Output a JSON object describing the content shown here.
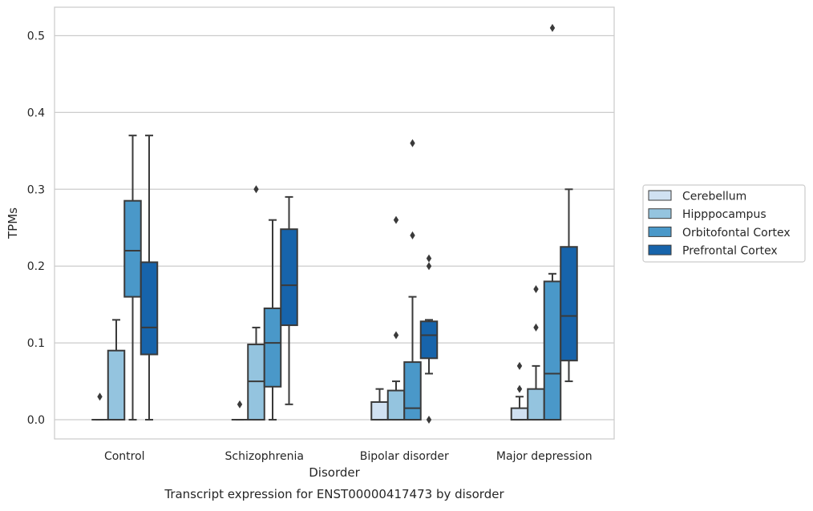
{
  "chart_data": {
    "type": "boxplot",
    "title": "Transcript expression for ENST00000417473 by disorder",
    "xlabel": "Disorder",
    "ylabel": "TPMs",
    "ylim": [
      -0.025,
      0.537
    ],
    "yticks": [
      0.0,
      0.1,
      0.2,
      0.3,
      0.4,
      0.5
    ],
    "ytick_labels": [
      "0.0",
      "0.1",
      "0.2",
      "0.3",
      "0.4",
      "0.5"
    ],
    "grid": true,
    "legend_position": "right",
    "categories": [
      "Control",
      "Schizophrenia",
      "Bipolar disorder",
      "Major depression"
    ],
    "series": [
      {
        "name": "Cerebellum",
        "color": "#d0e1f2",
        "boxes": [
          {
            "q1": 0.0,
            "median": 0.0,
            "q3": 0.0,
            "whisker_low": 0.0,
            "whisker_high": 0.0,
            "outliers": [
              0.03
            ]
          },
          {
            "q1": 0.0,
            "median": 0.0,
            "q3": 0.0,
            "whisker_low": 0.0,
            "whisker_high": 0.0,
            "outliers": [
              0.02
            ]
          },
          {
            "q1": 0.0,
            "median": 0.0,
            "q3": 0.023,
            "whisker_low": 0.0,
            "whisker_high": 0.04,
            "outliers": []
          },
          {
            "q1": 0.0,
            "median": 0.0,
            "q3": 0.015,
            "whisker_low": 0.0,
            "whisker_high": 0.03,
            "outliers": [
              0.04,
              0.07
            ]
          }
        ]
      },
      {
        "name": "Hipppocampus",
        "color": "#94c4df",
        "boxes": [
          {
            "q1": 0.0,
            "median": 0.0,
            "q3": 0.09,
            "whisker_low": 0.0,
            "whisker_high": 0.13,
            "outliers": []
          },
          {
            "q1": 0.0,
            "median": 0.05,
            "q3": 0.098,
            "whisker_low": 0.0,
            "whisker_high": 0.12,
            "outliers": [
              0.3
            ]
          },
          {
            "q1": 0.0,
            "median": 0.0,
            "q3": 0.038,
            "whisker_low": 0.0,
            "whisker_high": 0.05,
            "outliers": [
              0.11,
              0.26
            ]
          },
          {
            "q1": 0.0,
            "median": 0.0,
            "q3": 0.04,
            "whisker_low": 0.0,
            "whisker_high": 0.07,
            "outliers": [
              0.12,
              0.17
            ]
          }
        ]
      },
      {
        "name": "Orbitofontal Cortex",
        "color": "#4a98c9",
        "boxes": [
          {
            "q1": 0.16,
            "median": 0.22,
            "q3": 0.285,
            "whisker_low": 0.0,
            "whisker_high": 0.37,
            "outliers": []
          },
          {
            "q1": 0.043,
            "median": 0.1,
            "q3": 0.145,
            "whisker_low": 0.0,
            "whisker_high": 0.26,
            "outliers": []
          },
          {
            "q1": 0.0,
            "median": 0.015,
            "q3": 0.075,
            "whisker_low": 0.0,
            "whisker_high": 0.16,
            "outliers": [
              0.24,
              0.36
            ]
          },
          {
            "q1": 0.0,
            "median": 0.06,
            "q3": 0.18,
            "whisker_low": 0.0,
            "whisker_high": 0.19,
            "outliers": [
              0.51
            ]
          }
        ]
      },
      {
        "name": "Prefrontal Cortex",
        "color": "#1764ab",
        "boxes": [
          {
            "q1": 0.085,
            "median": 0.12,
            "q3": 0.205,
            "whisker_low": 0.0,
            "whisker_high": 0.37,
            "outliers": []
          },
          {
            "q1": 0.123,
            "median": 0.175,
            "q3": 0.248,
            "whisker_low": 0.02,
            "whisker_high": 0.29,
            "outliers": []
          },
          {
            "q1": 0.08,
            "median": 0.11,
            "q3": 0.128,
            "whisker_low": 0.06,
            "whisker_high": 0.13,
            "outliers": [
              0.0,
              0.2,
              0.21
            ]
          },
          {
            "q1": 0.077,
            "median": 0.135,
            "q3": 0.225,
            "whisker_low": 0.05,
            "whisker_high": 0.3,
            "outliers": []
          }
        ]
      }
    ]
  }
}
